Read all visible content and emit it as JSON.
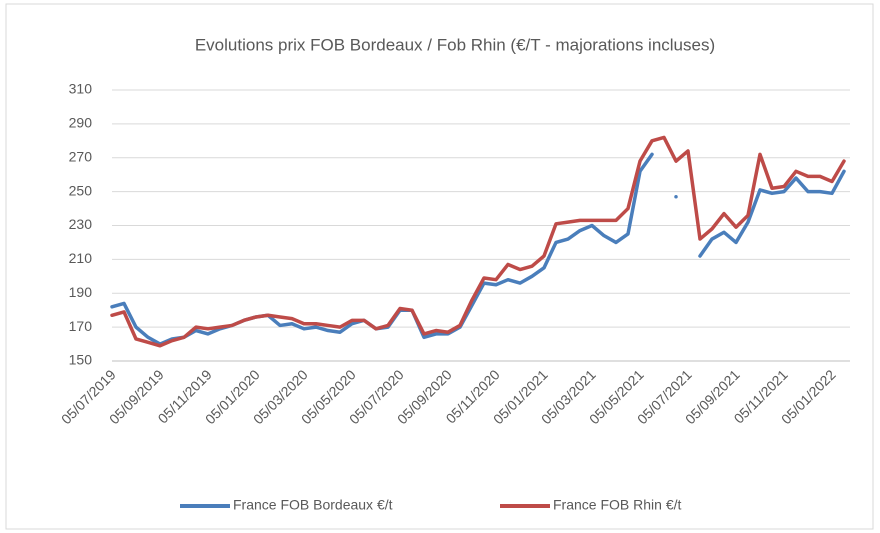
{
  "chart_data": {
    "type": "line",
    "title": "Evolutions prix FOB Bordeaux / Fob Rhin (€/T - majorations incluses)",
    "categories": [
      "05/07/2019",
      null,
      null,
      null,
      "05/09/2019",
      null,
      null,
      null,
      "05/11/2019",
      null,
      null,
      null,
      "05/01/2020",
      null,
      null,
      null,
      "05/03/2020",
      null,
      null,
      null,
      "05/05/2020",
      null,
      null,
      null,
      "05/07/2020",
      null,
      null,
      null,
      "05/09/2020",
      null,
      null,
      null,
      "05/11/2020",
      null,
      null,
      null,
      "05/01/2021",
      null,
      null,
      null,
      "05/03/2021",
      null,
      null,
      null,
      "05/05/2021",
      null,
      null,
      null,
      "05/07/2021",
      null,
      null,
      null,
      "05/09/2021",
      null,
      null,
      null,
      "05/11/2021",
      null,
      null,
      null,
      "05/01/2022",
      null
    ],
    "series": [
      {
        "name": "France FOB Bordeaux €/t",
        "color": "#4a7ebb",
        "values": [
          182,
          184,
          170,
          164,
          160,
          163,
          164,
          168,
          166,
          169,
          171,
          174,
          176,
          177,
          171,
          172,
          169,
          170,
          168,
          167,
          172,
          174,
          169,
          170,
          180,
          180,
          164,
          166,
          166,
          170,
          183,
          196,
          195,
          198,
          196,
          200,
          205,
          220,
          222,
          227,
          230,
          224,
          220,
          225,
          262,
          272,
          null,
          247,
          null,
          212,
          222,
          226,
          220,
          232,
          251,
          249,
          250,
          258,
          250,
          250,
          249,
          262
        ]
      },
      {
        "name": "France FOB Rhin €/t",
        "color": "#be4b48",
        "values": [
          177,
          179,
          163,
          161,
          159,
          162,
          164,
          170,
          169,
          170,
          171,
          174,
          176,
          177,
          176,
          175,
          172,
          172,
          171,
          170,
          174,
          174,
          169,
          171,
          181,
          180,
          166,
          168,
          167,
          171,
          186,
          199,
          198,
          207,
          204,
          206,
          212,
          231,
          232,
          233,
          233,
          233,
          233,
          240,
          268,
          280,
          282,
          268,
          274,
          222,
          228,
          237,
          229,
          236,
          272,
          252,
          253,
          262,
          259,
          259,
          256,
          268
        ]
      }
    ],
    "ylim": [
      150,
      310
    ],
    "yticks": [
      150,
      170,
      190,
      210,
      230,
      250,
      270,
      290,
      310
    ],
    "grid": true
  }
}
